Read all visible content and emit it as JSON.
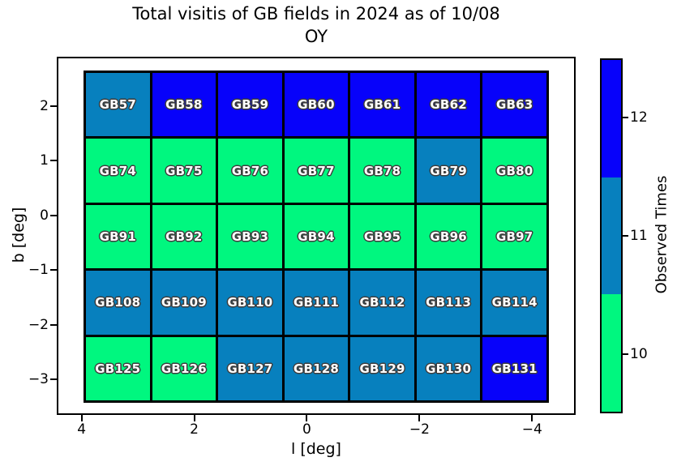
{
  "title": {
    "line1": "Total visitis of GB fields in 2024 as of 10/08",
    "line2": "OY"
  },
  "chart_data": {
    "type": "heatmap",
    "title": "Total visitis of GB fields in 2024 as of 10/08 OY",
    "xlabel": "l [deg]",
    "ylabel": "b [deg]",
    "x_tick_labels": [
      "4",
      "2",
      "0",
      "−2",
      "−4"
    ],
    "y_tick_labels": [
      "2",
      "1",
      "0",
      "−1",
      "−2",
      "−3"
    ],
    "x_axis_reversed": true,
    "grid_lines": "off",
    "legend_position": "none",
    "colorbar": {
      "label": "Observed Times",
      "tick_labels": [
        "12",
        "11",
        "10"
      ],
      "levels": [
        {
          "value": 12,
          "color": "#0702FA"
        },
        {
          "value": 11,
          "color": "#0780BE"
        },
        {
          "value": 10,
          "color": "#00F77F"
        }
      ],
      "range": [
        9.5,
        12.5
      ]
    },
    "rows": [
      {
        "cells": [
          {
            "label": "GB57",
            "value": 11
          },
          {
            "label": "GB58",
            "value": 12
          },
          {
            "label": "GB59",
            "value": 12
          },
          {
            "label": "GB60",
            "value": 12
          },
          {
            "label": "GB61",
            "value": 12
          },
          {
            "label": "GB62",
            "value": 12
          },
          {
            "label": "GB63",
            "value": 12
          }
        ]
      },
      {
        "cells": [
          {
            "label": "GB74",
            "value": 10
          },
          {
            "label": "GB75",
            "value": 10
          },
          {
            "label": "GB76",
            "value": 10
          },
          {
            "label": "GB77",
            "value": 10
          },
          {
            "label": "GB78",
            "value": 10
          },
          {
            "label": "GB79",
            "value": 11
          },
          {
            "label": "GB80",
            "value": 10
          }
        ]
      },
      {
        "cells": [
          {
            "label": "GB91",
            "value": 10
          },
          {
            "label": "GB92",
            "value": 10
          },
          {
            "label": "GB93",
            "value": 10
          },
          {
            "label": "GB94",
            "value": 10
          },
          {
            "label": "GB95",
            "value": 10
          },
          {
            "label": "GB96",
            "value": 10
          },
          {
            "label": "GB97",
            "value": 10
          }
        ]
      },
      {
        "cells": [
          {
            "label": "GB108",
            "value": 11
          },
          {
            "label": "GB109",
            "value": 11
          },
          {
            "label": "GB110",
            "value": 11
          },
          {
            "label": "GB111",
            "value": 11
          },
          {
            "label": "GB112",
            "value": 11
          },
          {
            "label": "GB113",
            "value": 11
          },
          {
            "label": "GB114",
            "value": 11
          }
        ]
      },
      {
        "cells": [
          {
            "label": "GB125",
            "value": 10
          },
          {
            "label": "GB126",
            "value": 10
          },
          {
            "label": "GB127",
            "value": 11
          },
          {
            "label": "GB128",
            "value": 11
          },
          {
            "label": "GB129",
            "value": 11
          },
          {
            "label": "GB130",
            "value": 11
          },
          {
            "label": "GB131",
            "value": 12
          }
        ]
      }
    ]
  }
}
